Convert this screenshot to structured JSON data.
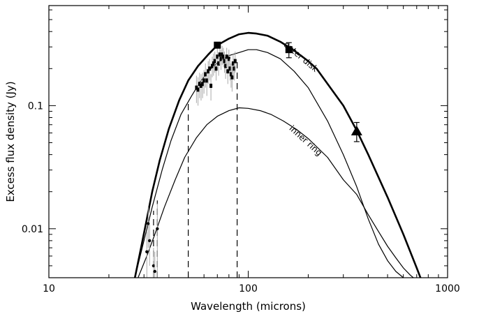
{
  "chart_data": {
    "type": "line",
    "title": "",
    "xlabel": "Wavelength (microns)",
    "ylabel": "Excess flux density (Jy)",
    "x_scale": "log",
    "y_scale": "log",
    "xlim": [
      10,
      1000
    ],
    "ylim": [
      0.004,
      0.65
    ],
    "x_ticks": [
      {
        "value": 10,
        "label": "10"
      },
      {
        "value": 100,
        "label": "100"
      },
      {
        "value": 1000,
        "label": "1000"
      }
    ],
    "y_ticks": [
      {
        "value": 0.01,
        "label": "0.01"
      },
      {
        "value": 0.1,
        "label": "0.1"
      }
    ],
    "grid": false,
    "legend": "none",
    "series": [
      {
        "style": "thick-solid",
        "x": [
          27,
          29,
          31,
          33,
          36,
          40,
          45,
          50,
          56,
          63,
          70,
          80,
          90,
          100,
          110,
          125,
          145,
          170,
          200,
          220,
          300,
          350,
          400,
          500,
          600,
          700,
          750
        ],
        "y": [
          0.004,
          0.007,
          0.012,
          0.02,
          0.036,
          0.065,
          0.11,
          0.16,
          0.21,
          0.26,
          0.31,
          0.35,
          0.38,
          0.39,
          0.385,
          0.37,
          0.33,
          0.28,
          0.23,
          0.2,
          0.1,
          0.063,
          0.04,
          0.018,
          0.009,
          0.0048,
          0.0036
        ]
      },
      {
        "name": "outer disk",
        "style": "thin-solid",
        "x": [
          27,
          30,
          33,
          37,
          41,
          46,
          52,
          58,
          65,
          72,
          80,
          90,
          100,
          110,
          125,
          145,
          170,
          200,
          250,
          300,
          350,
          400,
          450,
          500,
          550,
          600
        ],
        "y": [
          0.004,
          0.008,
          0.015,
          0.03,
          0.052,
          0.085,
          0.12,
          0.16,
          0.2,
          0.23,
          0.255,
          0.27,
          0.285,
          0.285,
          0.27,
          0.24,
          0.19,
          0.14,
          0.075,
          0.04,
          0.022,
          0.012,
          0.0075,
          0.0055,
          0.0045,
          0.004
        ]
      },
      {
        "name": "inner ring",
        "style": "thin-solid",
        "x": [
          28,
          31,
          34,
          38,
          43,
          48,
          55,
          62,
          70,
          80,
          90,
          100,
          115,
          130,
          150,
          175,
          200,
          250,
          300,
          350,
          400,
          450,
          500,
          550,
          600,
          650,
          700
        ],
        "y": [
          0.004,
          0.006,
          0.009,
          0.015,
          0.025,
          0.038,
          0.055,
          0.07,
          0.082,
          0.091,
          0.096,
          0.095,
          0.091,
          0.085,
          0.075,
          0.064,
          0.054,
          0.038,
          0.025,
          0.019,
          0.013,
          0.0095,
          0.0072,
          0.0058,
          0.0048,
          0.0042,
          0.0038
        ]
      },
      {
        "style": "dashed",
        "x": [
          50,
          50
        ],
        "y": [
          0.004,
          0.105
        ]
      },
      {
        "style": "dashed",
        "x": [
          88,
          88
        ],
        "y": [
          0.004,
          0.23
        ]
      },
      {
        "style": "dashed",
        "x": [
          33.5,
          33.5
        ],
        "y": [
          0.004,
          0.014
        ]
      },
      {
        "style": "dashed",
        "x": [
          35,
          35
        ],
        "y": [
          0.004,
          0.017
        ]
      }
    ],
    "spectrum_points": {
      "marker": "small-square",
      "errorbar_color": "#aaaaaa",
      "x": [
        55,
        56,
        57,
        58,
        59,
        60,
        61,
        62,
        63,
        64,
        65,
        66,
        67,
        68,
        69,
        70,
        71,
        72,
        73,
        74,
        75,
        76,
        77,
        78,
        79,
        80,
        81,
        82,
        83,
        84,
        85,
        86
      ],
      "y": [
        0.14,
        0.135,
        0.15,
        0.145,
        0.15,
        0.16,
        0.18,
        0.16,
        0.19,
        0.2,
        0.145,
        0.21,
        0.22,
        0.23,
        0.2,
        0.25,
        0.22,
        0.26,
        0.24,
        0.26,
        0.25,
        0.23,
        0.21,
        0.25,
        0.19,
        0.24,
        0.2,
        0.18,
        0.17,
        0.22,
        0.2,
        0.23
      ],
      "err": [
        0.035,
        0.035,
        0.035,
        0.035,
        0.035,
        0.035,
        0.04,
        0.04,
        0.04,
        0.04,
        0.035,
        0.04,
        0.045,
        0.045,
        0.04,
        0.045,
        0.045,
        0.045,
        0.045,
        0.045,
        0.045,
        0.045,
        0.045,
        0.045,
        0.04,
        0.045,
        0.04,
        0.04,
        0.04,
        0.045,
        0.04,
        0.045
      ]
    },
    "short_wave_points": {
      "marker": "small-circle",
      "errorbar_color": "#aaaaaa",
      "x": [
        31,
        31.5,
        32,
        33.5,
        34,
        35
      ],
      "y": [
        0.0065,
        0.011,
        0.008,
        0.005,
        0.0045,
        0.01
      ],
      "err": [
        0.003,
        0.004,
        0.003,
        0.002,
        0.002,
        0.006
      ]
    },
    "photometry_points": [
      {
        "marker": "square",
        "x": 70,
        "y": 0.31,
        "err": 0
      },
      {
        "marker": "square",
        "x": 160,
        "y": 0.285,
        "err": 0.04
      },
      {
        "marker": "triangle",
        "x": 350,
        "y": 0.062,
        "err": 0.011
      }
    ],
    "annotations": [
      {
        "text": "outer disk",
        "x": 180,
        "y": 0.24,
        "angle": 40
      },
      {
        "text": "inner ring",
        "x": 190,
        "y": 0.05,
        "angle": 42
      }
    ]
  }
}
